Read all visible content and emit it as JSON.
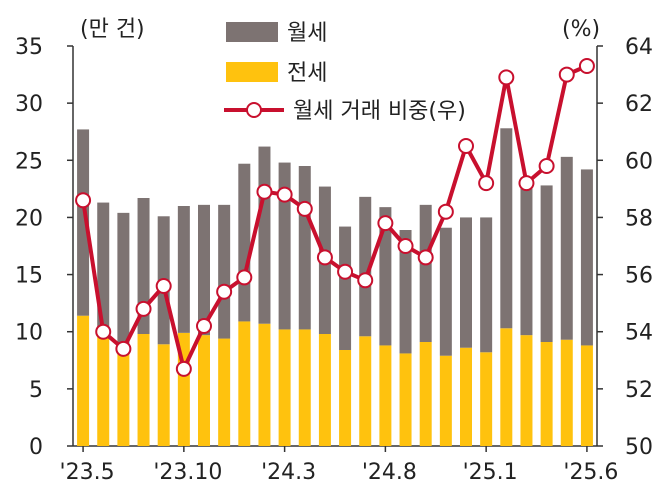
{
  "chart_data": {
    "type": "bar+line",
    "categories": [
      "23.5",
      "23.6",
      "23.7",
      "23.8",
      "23.9",
      "23.10",
      "23.11",
      "23.12",
      "24.1",
      "24.2",
      "24.3",
      "24.4",
      "24.5",
      "24.6",
      "24.7",
      "24.8",
      "24.9",
      "24.10",
      "24.11",
      "24.12",
      "25.1",
      "25.2",
      "25.3",
      "25.4",
      "25.5",
      "25.6"
    ],
    "x_tick_labels": [
      "'23.5",
      "'23.10",
      "'24.3",
      "'24.8",
      "'25.1",
      "'25.6"
    ],
    "x_tick_indices": [
      0,
      5,
      10,
      15,
      20,
      25
    ],
    "series": [
      {
        "name": "월세",
        "type": "stacked-bar",
        "color": "#7d7372",
        "values": [
          16.3,
          11.2,
          11.8,
          11.9,
          11.2,
          11.1,
          11.4,
          11.7,
          13.8,
          15.5,
          14.6,
          14.3,
          12.9,
          10.8,
          12.2,
          12.1,
          10.8,
          12.0,
          11.2,
          11.4,
          11.8,
          17.5,
          13.8,
          13.7,
          16.0,
          15.4
        ]
      },
      {
        "name": "전세",
        "type": "stacked-bar",
        "color": "#ffc20e",
        "values": [
          11.4,
          10.1,
          8.6,
          9.8,
          8.9,
          9.9,
          9.7,
          9.4,
          10.9,
          10.7,
          10.2,
          10.2,
          9.8,
          8.4,
          9.6,
          8.8,
          8.1,
          9.1,
          7.9,
          8.6,
          8.2,
          10.3,
          9.7,
          9.1,
          9.3,
          8.8
        ]
      },
      {
        "name": "월세 거래 비중(우)",
        "type": "line",
        "axis": "right",
        "color": "#c8102e",
        "values": [
          58.6,
          54.0,
          53.4,
          54.8,
          55.6,
          52.7,
          54.2,
          55.4,
          55.9,
          58.9,
          58.8,
          58.3,
          56.6,
          56.1,
          55.8,
          57.8,
          57.0,
          56.6,
          58.2,
          60.5,
          59.2,
          62.9,
          59.2,
          59.8,
          63.0,
          63.3
        ]
      }
    ],
    "y_left": {
      "unit": "(만 건)",
      "min": 0,
      "max": 35,
      "ticks": [
        0,
        5,
        10,
        15,
        20,
        25,
        30,
        35
      ]
    },
    "y_right": {
      "unit": "(%)",
      "min": 50,
      "max": 64,
      "ticks": [
        50,
        52,
        54,
        56,
        58,
        60,
        62,
        64
      ]
    },
    "legend": [
      "월세",
      "전세",
      "월세 거래 비중(우)"
    ]
  }
}
